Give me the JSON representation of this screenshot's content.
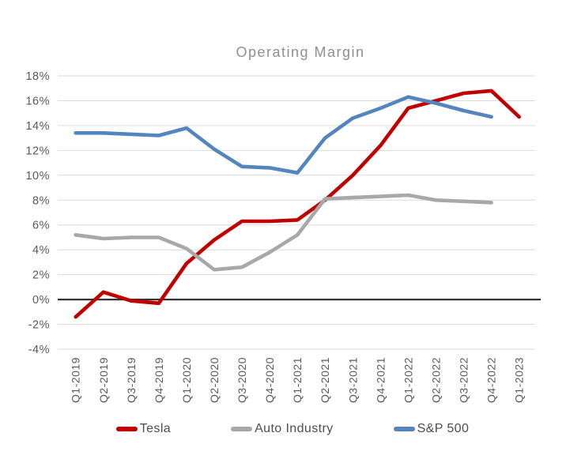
{
  "chart_data": {
    "type": "line",
    "title": "Operating Margin",
    "categories": [
      "Q1-2019",
      "Q2-2019",
      "Q3-2019",
      "Q4-2019",
      "Q1-2020",
      "Q2-2020",
      "Q3-2020",
      "Q4-2020",
      "Q1-2021",
      "Q2-2021",
      "Q3-2021",
      "Q4-2021",
      "Q1-2022",
      "Q2-2022",
      "Q3-2022",
      "Q4-2022",
      "Q1-2023"
    ],
    "series": [
      {
        "name": "Tesla",
        "color": "#c00000",
        "values": [
          -1.4,
          0.6,
          -0.1,
          -0.3,
          2.9,
          4.8,
          6.3,
          6.3,
          6.4,
          8.0,
          10.0,
          12.4,
          15.4,
          16.0,
          16.6,
          16.8,
          14.7
        ]
      },
      {
        "name": "Auto Industry",
        "color": "#a8a8a8",
        "values": [
          5.2,
          4.9,
          5.0,
          5.0,
          4.1,
          2.4,
          2.6,
          3.8,
          5.2,
          8.1,
          8.2,
          8.3,
          8.4,
          8.0,
          7.9,
          7.8,
          null
        ]
      },
      {
        "name": "S&P 500",
        "color": "#5585be",
        "values": [
          13.4,
          13.4,
          13.3,
          13.2,
          13.8,
          12.1,
          10.7,
          10.6,
          10.2,
          13.0,
          14.6,
          15.4,
          16.3,
          15.8,
          15.2,
          14.7,
          null
        ]
      }
    ],
    "ylim": [
      -4,
      18
    ],
    "ytick_step": 2,
    "ytick_suffix": "%",
    "grid": true,
    "zero_line": true,
    "legend_position": "bottom",
    "style": {
      "gridline_color": "#dbdbdb",
      "zero_line_color": "#333333",
      "tick_label_color": "#595959",
      "title_color": "#8f8f8f",
      "line_width": 4.6
    }
  }
}
